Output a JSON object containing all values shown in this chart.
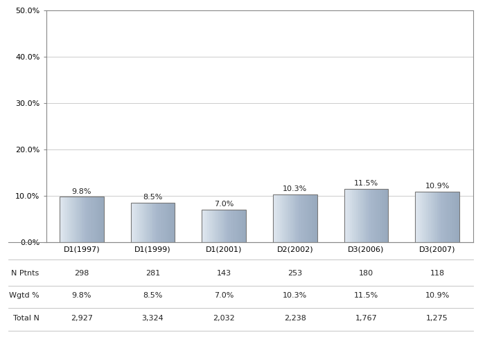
{
  "categories": [
    "D1(1997)",
    "D1(1999)",
    "D1(2001)",
    "D2(2002)",
    "D3(2006)",
    "D3(2007)"
  ],
  "values": [
    9.8,
    8.5,
    7.0,
    10.3,
    11.5,
    10.9
  ],
  "labels": [
    "9.8%",
    "8.5%",
    "7.0%",
    "10.3%",
    "11.5%",
    "10.9%"
  ],
  "n_ptnts": [
    "298",
    "281",
    "143",
    "253",
    "180",
    "118"
  ],
  "wgtd_pct": [
    "9.8%",
    "8.5%",
    "7.0%",
    "10.3%",
    "11.5%",
    "10.9%"
  ],
  "total_n": [
    "2,927",
    "3,324",
    "2,032",
    "2,238",
    "1,767",
    "1,275"
  ],
  "ylim": [
    0,
    50
  ],
  "yticks": [
    0,
    10,
    20,
    30,
    40,
    50
  ],
  "ytick_labels": [
    "0.0%",
    "10.0%",
    "20.0%",
    "30.0%",
    "40.0%",
    "50.0%"
  ],
  "background_color": "#ffffff",
  "grid_color": "#cccccc",
  "border_color": "#888888",
  "row_labels": [
    "N Ptnts",
    "Wgtd %",
    "Total N"
  ],
  "font_size_ticks": 8,
  "font_size_bar_labels": 8,
  "font_size_table": 8
}
